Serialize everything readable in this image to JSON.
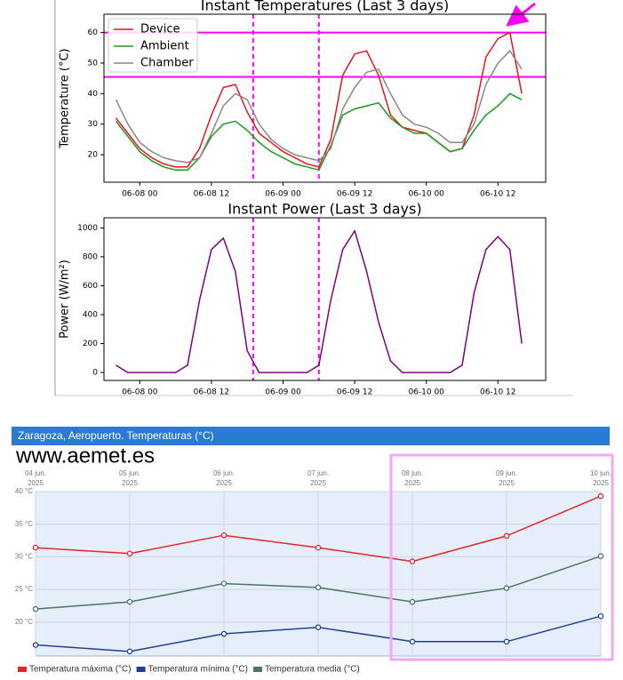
{
  "chart_data": [
    {
      "type": "line",
      "title": "Instant Temperatures (Last 3 days)",
      "y_label": "Temperature (°C)",
      "x": [
        "06-07 20",
        "06-07 22",
        "06-08 00",
        "06-08 02",
        "06-08 04",
        "06-08 06",
        "06-08 08",
        "06-08 10",
        "06-08 12",
        "06-08 14",
        "06-08 16",
        "06-08 18",
        "06-08 20",
        "06-08 22",
        "06-09 00",
        "06-09 02",
        "06-09 04",
        "06-09 06",
        "06-09 08",
        "06-09 10",
        "06-09 12",
        "06-09 14",
        "06-09 16",
        "06-09 18",
        "06-09 20",
        "06-09 22",
        "06-10 00",
        "06-10 02",
        "06-10 04",
        "06-10 06",
        "06-10 08",
        "06-10 10",
        "06-10 12",
        "06-10 14",
        "06-10 16"
      ],
      "series": [
        {
          "name": "Device",
          "color": "#e8141a",
          "values": [
            32,
            27,
            22,
            19,
            17,
            16,
            16,
            22,
            33,
            42,
            43,
            34,
            27,
            24,
            21,
            19,
            17,
            16,
            25,
            46,
            53,
            54,
            46,
            33,
            29,
            28,
            27,
            24,
            21,
            22,
            33,
            52,
            58,
            60,
            40
          ]
        },
        {
          "name": "Ambient",
          "color": "#1a9a1a",
          "values": [
            31,
            26,
            21,
            18,
            16,
            15,
            15,
            19,
            26,
            30,
            31,
            28,
            24,
            21,
            19,
            17,
            16,
            15,
            23,
            33,
            35,
            36,
            37,
            32,
            29,
            27,
            27,
            24,
            21,
            22,
            28,
            33,
            36,
            40,
            38
          ]
        },
        {
          "name": "Chamber",
          "color": "#888888",
          "values": [
            38,
            30,
            24,
            21,
            19,
            18,
            17.5,
            19,
            27,
            36,
            40,
            38,
            30,
            25,
            22,
            20,
            19,
            18,
            22,
            35,
            42,
            47,
            48,
            40,
            33,
            30,
            29,
            27,
            24,
            24,
            30,
            43,
            50,
            54,
            48
          ]
        }
      ],
      "xlim": [
        "06-07 18",
        "06-10 20"
      ],
      "xticks": [
        "06-08 00",
        "06-08 12",
        "06-09 00",
        "06-09 12",
        "06-10 00",
        "06-10 12"
      ],
      "ylim": [
        11,
        66
      ],
      "yticks": [
        20,
        30,
        40,
        50,
        60
      ],
      "legend": "upper left",
      "hlines": [
        60,
        45.5
      ],
      "hline_color": "#ff00ff",
      "vlines": [
        "06-08 19",
        "06-09 06"
      ],
      "vline_color": "#ff00ff"
    },
    {
      "type": "line",
      "title": "Instant Power (Last 3 days)",
      "y_label": "Power (W/m²)",
      "x": [
        "06-07 20",
        "06-07 22",
        "06-08 00",
        "06-08 02",
        "06-08 04",
        "06-08 06",
        "06-08 08",
        "06-08 10",
        "06-08 12",
        "06-08 14",
        "06-08 16",
        "06-08 18",
        "06-08 20",
        "06-08 22",
        "06-09 00",
        "06-09 02",
        "06-09 04",
        "06-09 06",
        "06-09 08",
        "06-09 10",
        "06-09 12",
        "06-09 14",
        "06-09 16",
        "06-09 18",
        "06-09 20",
        "06-09 22",
        "06-10 00",
        "06-10 02",
        "06-10 04",
        "06-10 06",
        "06-10 08",
        "06-10 10",
        "06-10 12",
        "06-10 14",
        "06-10 16"
      ],
      "series": [
        {
          "color": "#800080",
          "values": [
            50,
            0,
            0,
            0,
            0,
            0,
            50,
            500,
            850,
            930,
            700,
            150,
            0,
            0,
            0,
            0,
            0,
            50,
            500,
            850,
            980,
            700,
            350,
            80,
            0,
            0,
            0,
            0,
            0,
            50,
            550,
            850,
            940,
            850,
            200
          ]
        }
      ],
      "xlim": [
        "06-07 18",
        "06-10 20"
      ],
      "xticks": [
        "06-08 00",
        "06-08 12",
        "06-09 00",
        "06-09 12",
        "06-10 00",
        "06-10 12"
      ],
      "ylim": [
        -55,
        1070
      ],
      "yticks": [
        0,
        200,
        400,
        600,
        800,
        1000
      ],
      "vlines": [
        "06-08 19",
        "06-09 06"
      ],
      "vline_color": "#ff00ff"
    },
    {
      "type": "line",
      "title": "Zaragoza, Aeropuerto. Temperaturas (°C)",
      "source": "www.aemet.es",
      "categories": [
        "04 jun. 2025",
        "05 jun. 2025",
        "06 jun. 2025",
        "07 jun. 2025",
        "08 jun. 2025",
        "09 jun. 2025",
        "10 jun. 2025"
      ],
      "series": [
        {
          "name": "Temperatura máxima (°C)",
          "color": "#e3262c",
          "values": [
            31.4,
            30.5,
            33.3,
            31.4,
            29.3,
            33.2,
            39.3
          ]
        },
        {
          "name": "Temperatura mínima (°C)",
          "color": "#1f4394",
          "values": [
            16.5,
            15.5,
            18.2,
            19.2,
            17.0,
            17.0,
            20.9
          ]
        },
        {
          "name": "Temperatura media (°C)",
          "color": "#4b7565",
          "values": [
            22.0,
            23.1,
            25.9,
            25.3,
            23.1,
            25.2,
            30.1
          ]
        }
      ],
      "ylim": [
        14.8,
        40
      ],
      "yticks": [
        {
          "value": 20,
          "label": "20 °C"
        },
        {
          "value": 25,
          "label": "25 °C"
        },
        {
          "value": 30,
          "label": "30 °C"
        },
        {
          "value": 35,
          "label": "35 °C"
        },
        {
          "value": 40,
          "label": "40 °C"
        }
      ],
      "legend": "bottom"
    }
  ]
}
